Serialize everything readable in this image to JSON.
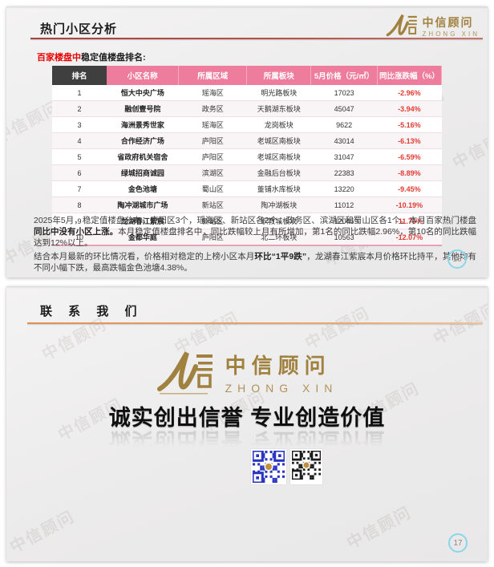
{
  "watermark": {
    "text": "中信顾问"
  },
  "brand": {
    "name_cn": "中信顾问",
    "name_en": "ZHONG XIN",
    "gold": "#a1813f"
  },
  "slide1": {
    "page_number": "16",
    "title": "热门小区分析",
    "subtitle": {
      "highlight": "百家楼盘中",
      "rest": "稳定值楼盘排名:"
    },
    "table": {
      "columns": [
        "排名",
        "小区名称",
        "所属区域",
        "所属板块",
        "5月价格（元/㎡）",
        "同比涨跌幅（%）"
      ],
      "rows": [
        [
          "1",
          "恒大中央广场",
          "瑶海区",
          "明光路板块",
          "17023",
          "-2.96%"
        ],
        [
          "2",
          "融创壹号院",
          "政务区",
          "天鹅湖东板块",
          "45047",
          "-3.94%"
        ],
        [
          "3",
          "海洲景秀世家",
          "瑶海区",
          "龙岗板块",
          "9622",
          "-5.16%"
        ],
        [
          "4",
          "合作经济广场",
          "庐阳区",
          "老城区南板块",
          "43014",
          "-6.13%"
        ],
        [
          "5",
          "省政府机关宿舍",
          "庐阳区",
          "老城区南板块",
          "31047",
          "-6.59%"
        ],
        [
          "6",
          "绿城招商诚园",
          "滨湖区",
          "金融后台板块",
          "22383",
          "-8.89%"
        ],
        [
          "7",
          "金色池塘",
          "蜀山区",
          "董铺水库板块",
          "13220",
          "-9.45%"
        ],
        [
          "8",
          "陶冲湖城市广场",
          "新站区",
          "陶冲湖板块",
          "11012",
          "-10.19%"
        ],
        [
          "9",
          "龙湖春江紫宸",
          "新站区",
          "职教城板块",
          "12045",
          "-11.76%"
        ],
        [
          "10",
          "金都华庭",
          "庐阳区",
          "北二环板块",
          "10563",
          "-12.07%"
        ]
      ],
      "header_pink": "#ee7c9c",
      "header_dark": "#3f3f3f",
      "negative_color": "#e23b33"
    },
    "analysis": {
      "p1": [
        {
          "text": "2025年5月，稳定值楼盘分布，庐阳区3个，瑶海区、新站区各2个，政务区、滨湖区和蜀山区各1个。本月百家热门楼盘"
        },
        {
          "text": "同比中没有小区上涨。"
        },
        {
          "text": "本月稳定值楼盘排名中，同比跌幅较上月有所增加，第1名的同比跌幅2.96%，第10名的同比跌幅达到12%以上。"
        }
      ],
      "p2": [
        {
          "text": "结合本月最新的环比情况看，价格相对稳定的上榜小区本月"
        },
        {
          "text": "环比“1平9跌”"
        },
        {
          "text": "，龙湖春江紫宸本月价格环比持平，其他均有不同小幅下跌，最高跌幅金色池塘4.38%。"
        }
      ]
    }
  },
  "slide2": {
    "page_number": "17",
    "title": "联 系 我 们",
    "slogan": "诚实创出信誉  专业创造价值",
    "qr": {
      "left_color": "#2a35c4",
      "right_color": "#1c1c1c",
      "center_color": "#c2913f"
    }
  }
}
